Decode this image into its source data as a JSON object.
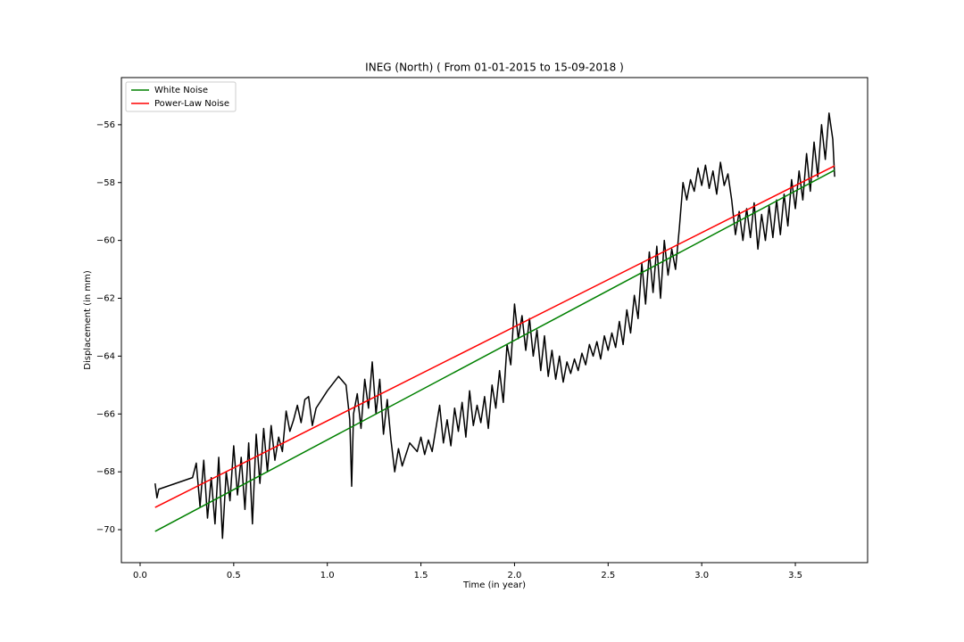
{
  "chart_data": {
    "type": "line",
    "title": "INEG (North) ( From 01-01-2015 to 15-09-2018 )",
    "xlabel": "Time (in year)",
    "ylabel": "Displacement (in mm)",
    "xlim": [
      -0.1,
      3.886
    ],
    "ylim": [
      -71.14,
      -54.37
    ],
    "xticks": [
      {
        "value": 0,
        "label": "0.0"
      },
      0.5,
      {
        "value": 1,
        "label": "1.0"
      },
      1.5,
      {
        "value": 2,
        "label": "2.0"
      },
      2.5,
      {
        "value": 3,
        "label": "3.0"
      },
      3.5
    ],
    "yticks": [
      {
        "value": -70,
        "label": "−70"
      },
      {
        "value": -68,
        "label": "−68"
      },
      {
        "value": -66,
        "label": "−66"
      },
      {
        "value": -64,
        "label": "−64"
      },
      {
        "value": -62,
        "label": "−62"
      },
      {
        "value": -60,
        "label": "−60"
      },
      {
        "value": -58,
        "label": "−58"
      },
      {
        "value": -56,
        "label": "−56"
      }
    ],
    "grid": false,
    "legend": "upper left",
    "color": "#000000",
    "x": [
      0.08,
      0.09,
      0.1,
      0.28,
      0.3,
      0.32,
      0.34,
      0.36,
      0.38,
      0.4,
      0.42,
      0.44,
      0.46,
      0.48,
      0.5,
      0.52,
      0.54,
      0.56,
      0.58,
      0.6,
      0.62,
      0.64,
      0.66,
      0.68,
      0.7,
      0.72,
      0.74,
      0.76,
      0.78,
      0.8,
      0.82,
      0.84,
      0.86,
      0.88,
      0.9,
      0.92,
      0.94,
      1.0,
      1.06,
      1.1,
      1.12,
      1.13,
      1.14,
      1.16,
      1.18,
      1.2,
      1.22,
      1.24,
      1.26,
      1.28,
      1.3,
      1.32,
      1.34,
      1.36,
      1.38,
      1.4,
      1.44,
      1.48,
      1.5,
      1.52,
      1.54,
      1.56,
      1.58,
      1.6,
      1.62,
      1.64,
      1.66,
      1.68,
      1.7,
      1.72,
      1.74,
      1.76,
      1.78,
      1.8,
      1.82,
      1.84,
      1.86,
      1.88,
      1.9,
      1.92,
      1.94,
      1.96,
      1.98,
      2.0,
      2.02,
      2.04,
      2.06,
      2.08,
      2.1,
      2.12,
      2.14,
      2.16,
      2.18,
      2.2,
      2.22,
      2.24,
      2.26,
      2.28,
      2.3,
      2.32,
      2.34,
      2.36,
      2.38,
      2.4,
      2.42,
      2.44,
      2.46,
      2.48,
      2.5,
      2.52,
      2.54,
      2.56,
      2.58,
      2.6,
      2.62,
      2.64,
      2.66,
      2.68,
      2.7,
      2.72,
      2.74,
      2.76,
      2.78,
      2.8,
      2.82,
      2.84,
      2.86,
      2.88,
      2.9,
      2.92,
      2.94,
      2.96,
      2.98,
      3.0,
      3.02,
      3.04,
      3.06,
      3.08,
      3.1,
      3.12,
      3.14,
      3.16,
      3.18,
      3.2,
      3.22,
      3.24,
      3.26,
      3.28,
      3.3,
      3.32,
      3.34,
      3.36,
      3.38,
      3.4,
      3.42,
      3.44,
      3.46,
      3.48,
      3.5,
      3.52,
      3.54,
      3.56,
      3.58,
      3.6,
      3.62,
      3.64,
      3.66,
      3.68,
      3.7,
      3.71
    ],
    "values": [
      -68.4,
      -68.9,
      -68.6,
      -68.2,
      -67.7,
      -69.2,
      -67.6,
      -69.6,
      -68.2,
      -69.8,
      -67.5,
      -70.3,
      -68.0,
      -69.0,
      -67.1,
      -68.8,
      -67.5,
      -69.3,
      -67.0,
      -69.8,
      -66.7,
      -68.4,
      -66.5,
      -68.0,
      -66.4,
      -67.6,
      -66.8,
      -67.3,
      -65.9,
      -66.6,
      -66.2,
      -65.7,
      -66.3,
      -65.5,
      -65.4,
      -66.4,
      -65.8,
      -65.2,
      -64.7,
      -65.0,
      -66.2,
      -68.5,
      -66.0,
      -65.3,
      -66.5,
      -64.8,
      -65.8,
      -64.2,
      -66.0,
      -64.8,
      -66.7,
      -65.5,
      -66.9,
      -68.0,
      -67.2,
      -67.8,
      -67.0,
      -67.3,
      -66.8,
      -67.4,
      -66.9,
      -67.3,
      -66.5,
      -65.7,
      -67.0,
      -66.2,
      -67.1,
      -65.8,
      -66.6,
      -65.6,
      -66.8,
      -65.2,
      -66.4,
      -65.7,
      -66.3,
      -65.4,
      -66.5,
      -65.0,
      -65.8,
      -64.5,
      -65.6,
      -63.6,
      -64.3,
      -62.2,
      -63.4,
      -62.6,
      -63.8,
      -62.7,
      -64.0,
      -63.1,
      -64.5,
      -63.3,
      -64.7,
      -63.8,
      -64.8,
      -64.0,
      -64.9,
      -64.2,
      -64.6,
      -64.1,
      -64.5,
      -63.9,
      -64.3,
      -63.6,
      -64.0,
      -63.5,
      -64.1,
      -63.3,
      -63.8,
      -63.2,
      -63.7,
      -62.8,
      -63.6,
      -62.4,
      -63.2,
      -61.9,
      -62.7,
      -60.8,
      -62.2,
      -60.4,
      -61.8,
      -60.2,
      -62.0,
      -60.0,
      -61.2,
      -60.3,
      -61.0,
      -59.6,
      -58.0,
      -58.6,
      -57.9,
      -58.3,
      -57.5,
      -58.1,
      -57.4,
      -58.2,
      -57.6,
      -58.4,
      -57.3,
      -58.1,
      -57.7,
      -58.6,
      -59.8,
      -59.0,
      -60.0,
      -58.9,
      -59.9,
      -58.7,
      -60.3,
      -59.1,
      -60.0,
      -58.8,
      -59.9,
      -58.6,
      -59.8,
      -58.4,
      -59.5,
      -57.9,
      -58.9,
      -57.6,
      -58.6,
      -57.0,
      -58.3,
      -56.6,
      -57.8,
      -56.0,
      -57.2,
      -55.6,
      -56.5,
      -57.8
    ],
    "series": [
      {
        "name": "White Noise",
        "color": "#008000",
        "x": [
          0.08,
          3.71
        ],
        "values": [
          -70.06,
          -57.57
        ]
      },
      {
        "name": "Power-Law Noise",
        "color": "#ff0000",
        "x": [
          0.08,
          3.71
        ],
        "values": [
          -69.23,
          -57.42
        ]
      }
    ]
  }
}
